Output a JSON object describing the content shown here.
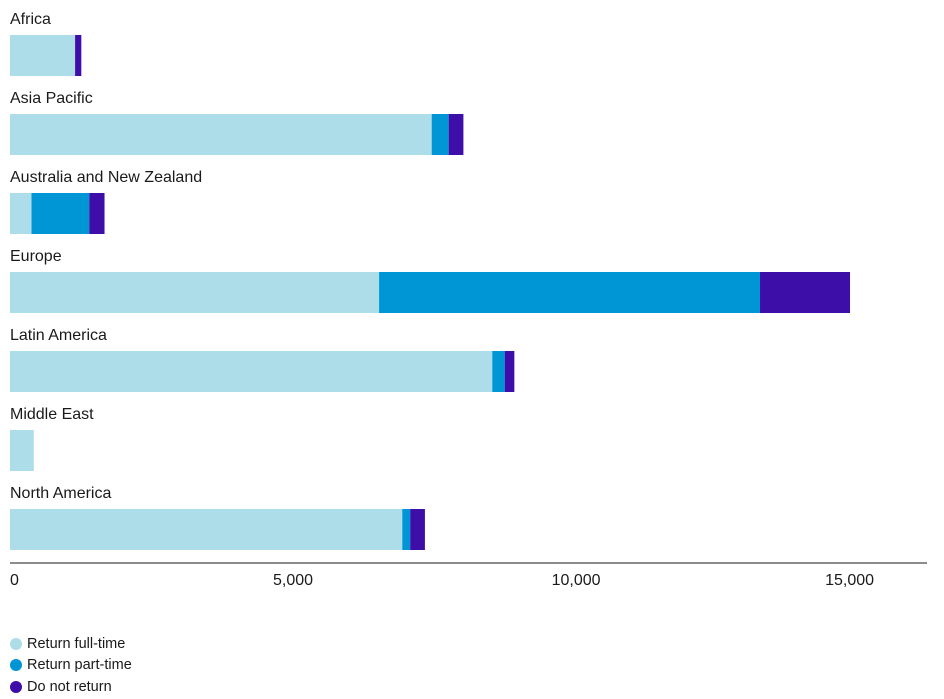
{
  "chart_data": {
    "type": "bar",
    "orientation": "horizontal",
    "stacked": true,
    "categories": [
      "Africa",
      "Asia Pacific",
      "Australia and New Zealand",
      "Europe",
      "Latin America",
      "Middle East",
      "North America"
    ],
    "series": [
      {
        "name": "Return full-time",
        "color": "#acdde8",
        "values": [
          1150,
          7450,
          380,
          6520,
          8520,
          420,
          6930
        ]
      },
      {
        "name": "Return part-time",
        "color": "#0096d6",
        "values": [
          0,
          300,
          1020,
          6730,
          220,
          0,
          140
        ]
      },
      {
        "name": "Do not return",
        "color": "#3d0ea8",
        "values": [
          110,
          260,
          270,
          1590,
          170,
          0,
          260
        ]
      }
    ],
    "xlim": [
      0,
      16200
    ],
    "xticks": [
      0,
      5000,
      10000,
      15000
    ],
    "xtick_labels": [
      "0",
      "5,000",
      "10,000",
      "15,000"
    ],
    "grid": false,
    "legend_position": "bottom-left"
  }
}
